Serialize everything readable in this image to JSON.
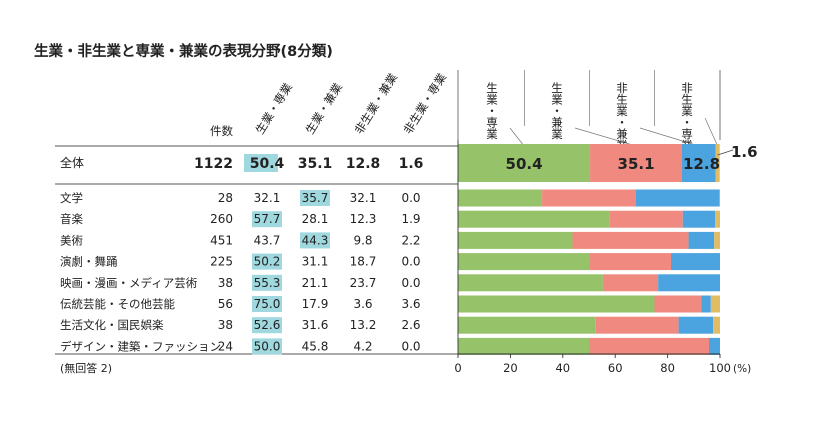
{
  "title": "生業・非生業と専業・兼業の表現分野(8分類)",
  "footnote": "(無回答 2)",
  "table": {
    "count_header": "件数",
    "column_headers": [
      "生業・専業",
      "生業・兼業",
      "非生業・兼業",
      "非生業・専業"
    ]
  },
  "total_row": {
    "label": "全体",
    "count": "1122",
    "values": [
      "50.4",
      "35.1",
      "12.8",
      "1.6"
    ]
  },
  "rows": [
    {
      "label": "文学",
      "count": "28",
      "values": [
        "32.1",
        "35.7",
        "32.1",
        "0.0"
      ],
      "highlight": 1
    },
    {
      "label": "音楽",
      "count": "260",
      "values": [
        "57.7",
        "28.1",
        "12.3",
        "1.9"
      ],
      "highlight": 0
    },
    {
      "label": "美術",
      "count": "451",
      "values": [
        "43.7",
        "44.3",
        "9.8",
        "2.2"
      ],
      "highlight": 1
    },
    {
      "label": "演劇・舞踊",
      "count": "225",
      "values": [
        "50.2",
        "31.1",
        "18.7",
        "0.0"
      ],
      "highlight": 0
    },
    {
      "label": "映画・漫画・メディア芸術",
      "count": "38",
      "values": [
        "55.3",
        "21.1",
        "23.7",
        "0.0"
      ],
      "highlight": 0
    },
    {
      "label": "伝統芸能・その他芸能",
      "count": "56",
      "values": [
        "75.0",
        "17.9",
        "3.6",
        "3.6"
      ],
      "highlight": 0
    },
    {
      "label": "生活文化・国民娯楽",
      "count": "38",
      "values": [
        "52.6",
        "31.6",
        "13.2",
        "2.6"
      ],
      "highlight": 0
    },
    {
      "label": "デザイン・建築・ファッション",
      "count": "24",
      "values": [
        "50.0",
        "45.8",
        "4.2",
        "0.0"
      ],
      "highlight": 0
    }
  ],
  "colors": {
    "seg1": "#96c26a",
    "seg2": "#f08a80",
    "seg3": "#4ba3df",
    "seg4": "#e0bd64",
    "highlight": "#9fd8de"
  },
  "chart_data": {
    "type": "bar",
    "orientation": "horizontal-stacked-100",
    "categories": [
      "全体",
      "文学",
      "音楽",
      "美術",
      "演劇・舞踊",
      "映画・漫画・メディア芸術",
      "伝統芸能・その他芸能",
      "生活文化・国民娯楽",
      "デザイン・建築・ファッション"
    ],
    "series": [
      {
        "name": "生業・専業",
        "values": [
          50.4,
          32.1,
          57.7,
          43.7,
          50.2,
          55.3,
          75.0,
          52.6,
          50.0
        ]
      },
      {
        "name": "生業・兼業",
        "values": [
          35.1,
          35.7,
          28.1,
          44.3,
          31.1,
          21.1,
          17.9,
          31.6,
          45.8
        ]
      },
      {
        "name": "非生業・兼業",
        "values": [
          12.8,
          32.1,
          12.3,
          9.8,
          18.7,
          23.7,
          3.6,
          13.2,
          4.2
        ]
      },
      {
        "name": "非生業・専業",
        "values": [
          1.6,
          0.0,
          1.9,
          2.2,
          0.0,
          0.0,
          3.6,
          2.6,
          0.0
        ]
      }
    ],
    "total_labels": [
      "50.4",
      "35.1",
      "12.8",
      "1.6"
    ],
    "xlim": [
      0,
      100
    ],
    "xticks": [
      "0",
      "20",
      "40",
      "60",
      "80",
      "100"
    ],
    "xunit": "(%)"
  }
}
